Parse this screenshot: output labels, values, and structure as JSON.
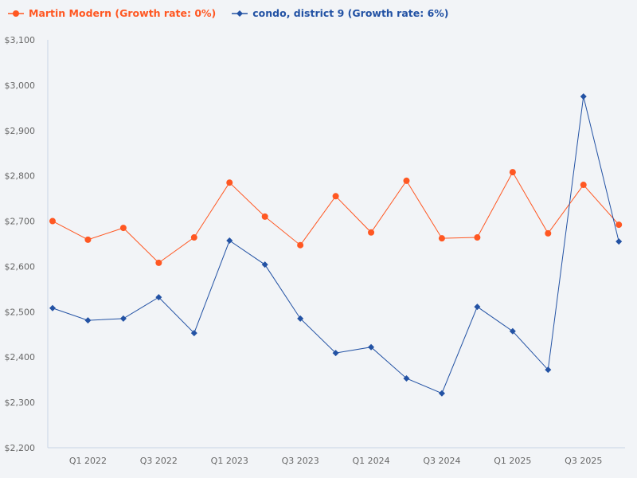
{
  "chart_data": {
    "type": "line",
    "title": "",
    "xlabel": "",
    "ylabel": "",
    "ylim": [
      2200,
      3100
    ],
    "yticks": [
      2200,
      2300,
      2400,
      2500,
      2600,
      2700,
      2800,
      2900,
      3000,
      3100
    ],
    "ytick_labels": [
      "$2,200",
      "$2,300",
      "$2,400",
      "$2,500",
      "$2,600",
      "$2,700",
      "$2,800",
      "$2,900",
      "$3,000",
      "$3,100"
    ],
    "categories": [
      "Q4 2021",
      "Q1 2022",
      "Q2 2022",
      "Q3 2022",
      "Q4 2022",
      "Q1 2023",
      "Q2 2023",
      "Q3 2023",
      "Q4 2023",
      "Q1 2024",
      "Q2 2024",
      "Q3 2024",
      "Q4 2024",
      "Q1 2025",
      "Q2 2025",
      "Q3 2025",
      "Q4 2025"
    ],
    "xtick_labels": [
      "Q1 2022",
      "Q3 2022",
      "Q1 2023",
      "Q3 2023",
      "Q1 2024",
      "Q3 2024",
      "Q1 2025",
      "Q3 2025"
    ],
    "grid": false,
    "legend_placement": "top-left",
    "series": [
      {
        "name": "Martin Modern (Growth rate: 0%)",
        "color": "#ff5722",
        "marker": "circle",
        "values": [
          2700,
          2659,
          2685,
          2608,
          2664,
          2785,
          2710,
          2647,
          2755,
          2675,
          2789,
          2662,
          2664,
          2808,
          2673,
          2780,
          2692
        ]
      },
      {
        "name": "condo, district 9 (Growth rate: 6%)",
        "color": "#2352a4",
        "marker": "diamond",
        "values": [
          2508,
          2481,
          2485,
          2532,
          2453,
          2657,
          2604,
          2485,
          2409,
          2422,
          2353,
          2320,
          2511,
          2457,
          2372,
          2975,
          2655
        ]
      }
    ]
  }
}
